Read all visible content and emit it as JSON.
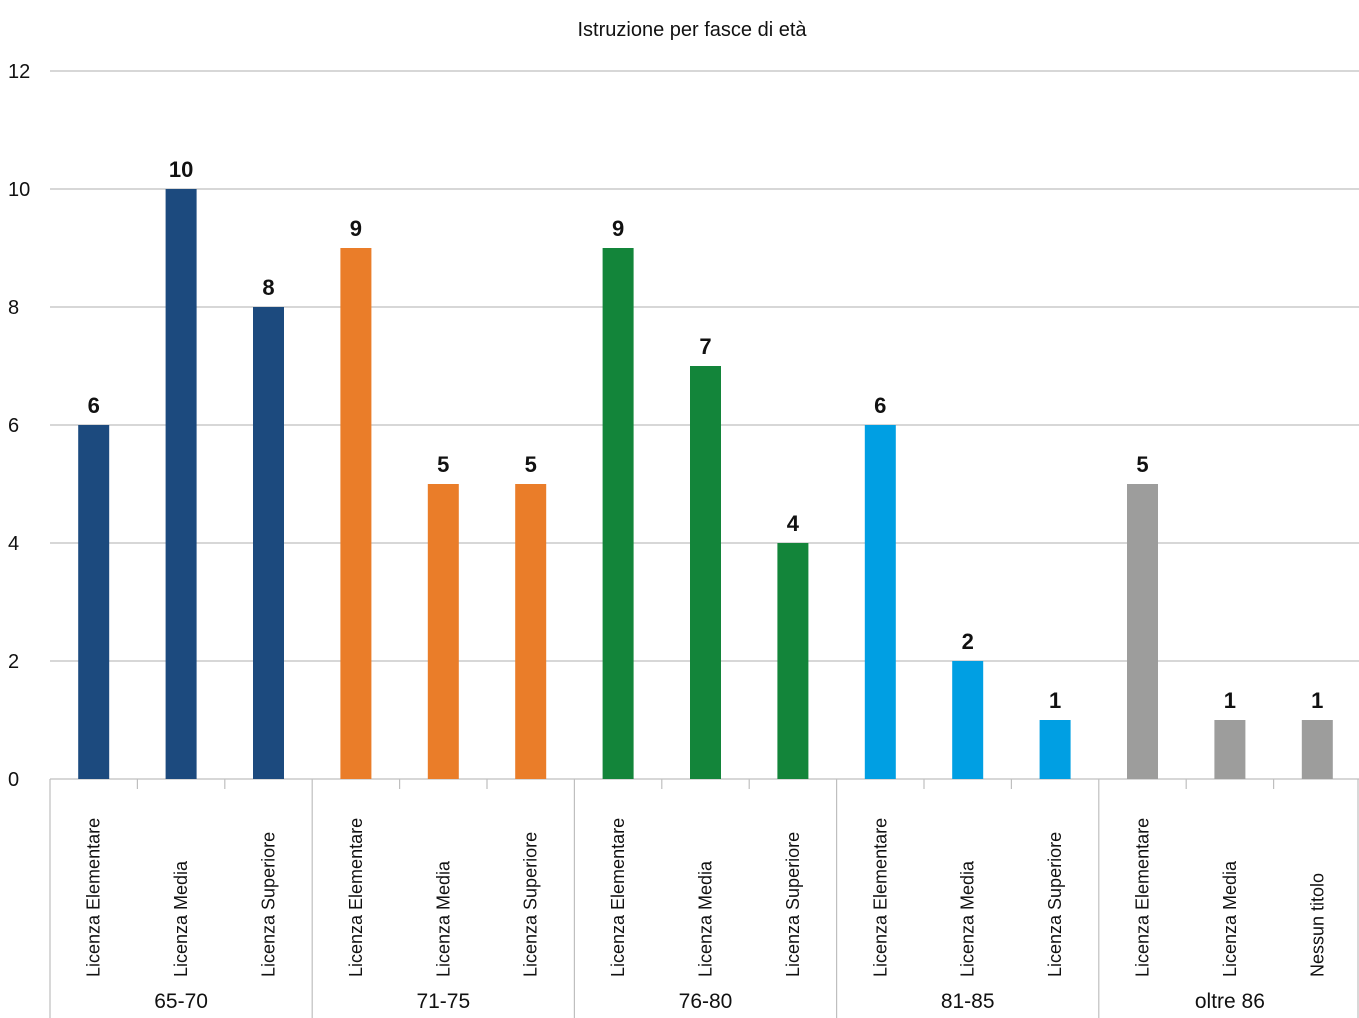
{
  "chart_data": {
    "type": "bar",
    "title": "Istruzione per fasce di età",
    "xlabel": "",
    "ylabel": "",
    "ylim": [
      0,
      12
    ],
    "yticks": [
      0,
      2,
      4,
      6,
      8,
      10,
      12
    ],
    "grid": true,
    "legend": "none",
    "groups": [
      {
        "name": "65-70",
        "color": "#1c4a7e",
        "categories": [
          "Licenza Elementare",
          "Licenza Media",
          "Licenza Superiore"
        ],
        "values": [
          6,
          10,
          8
        ]
      },
      {
        "name": "71-75",
        "color": "#ea7d29",
        "categories": [
          "Licenza Elementare",
          "Licenza Media",
          "Licenza Superiore"
        ],
        "values": [
          9,
          5,
          5
        ]
      },
      {
        "name": "76-80",
        "color": "#13853a",
        "categories": [
          "Licenza Elementare",
          "Licenza Media",
          "Licenza Superiore"
        ],
        "values": [
          9,
          7,
          4
        ]
      },
      {
        "name": "81-85",
        "color": "#009fe3",
        "categories": [
          "Licenza Elementare",
          "Licenza Media",
          "Licenza Superiore"
        ],
        "values": [
          6,
          2,
          1
        ]
      },
      {
        "name": "oltre 86",
        "color": "#9d9d9c",
        "categories": [
          "Licenza Elementare",
          "Licenza Media",
          "Nessun titolo"
        ],
        "values": [
          5,
          1,
          1
        ]
      }
    ]
  }
}
